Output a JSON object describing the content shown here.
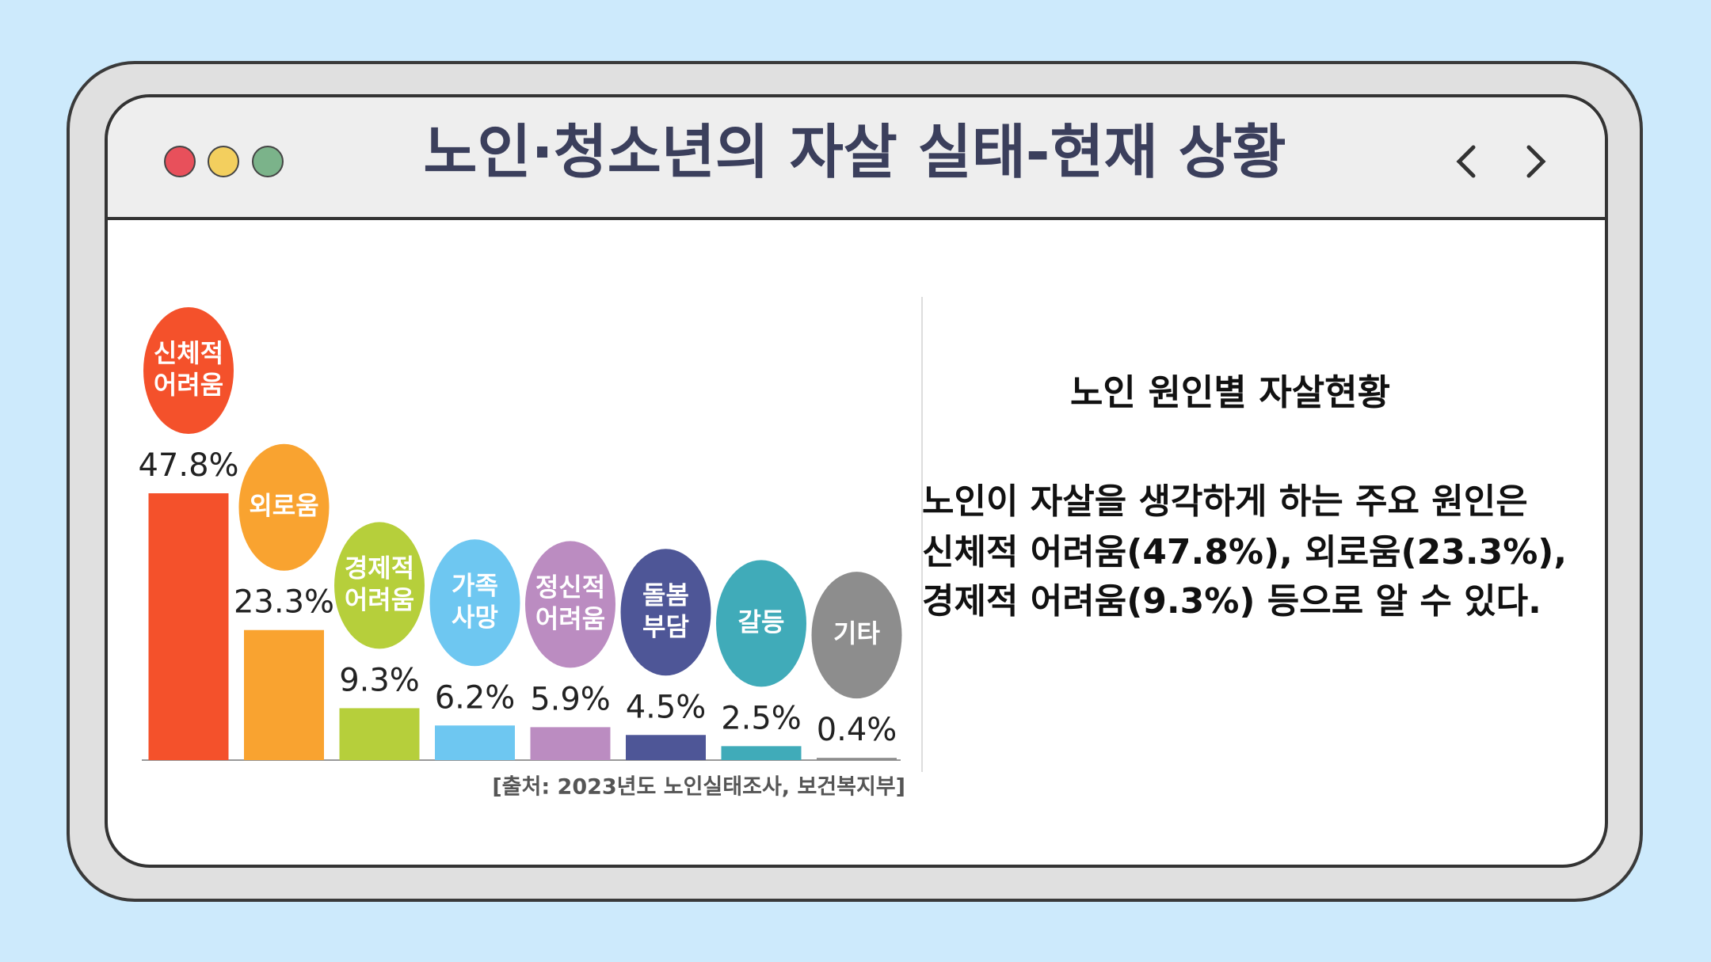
{
  "header": {
    "title": "노인·청소년의 자살 실태-현재 상황"
  },
  "chart_data": {
    "type": "bar",
    "categories": [
      "신체적 어려움",
      "외로움",
      "경제적 어려움",
      "가족 사망",
      "정신적 어려움",
      "돌봄 부담",
      "갈등",
      "기타"
    ],
    "values": [
      47.8,
      23.3,
      9.3,
      6.2,
      5.9,
      4.5,
      2.5,
      0.4
    ],
    "value_labels": [
      "47.8%",
      "23.3%",
      "9.3%",
      "6.2%",
      "5.9%",
      "4.5%",
      "2.5%",
      "0.4%"
    ],
    "colors": [
      "#f4512b",
      "#f9a330",
      "#b6cf3b",
      "#6ec7f1",
      "#bb8cc1",
      "#4e5697",
      "#40abb9",
      "#8d8d8d"
    ],
    "source": "[출처: 2023년도 노인실태조사, 보건복지부]"
  },
  "panel": {
    "heading": "노인 원인별 자살현황",
    "lines": [
      "노인이 자살을 생각하게 하는 주요 원인은",
      "신체적 어려움(47.8%), 외로움(23.3%),",
      "경제적 어려움(9.3%) 등으로 알 수 있다."
    ]
  }
}
